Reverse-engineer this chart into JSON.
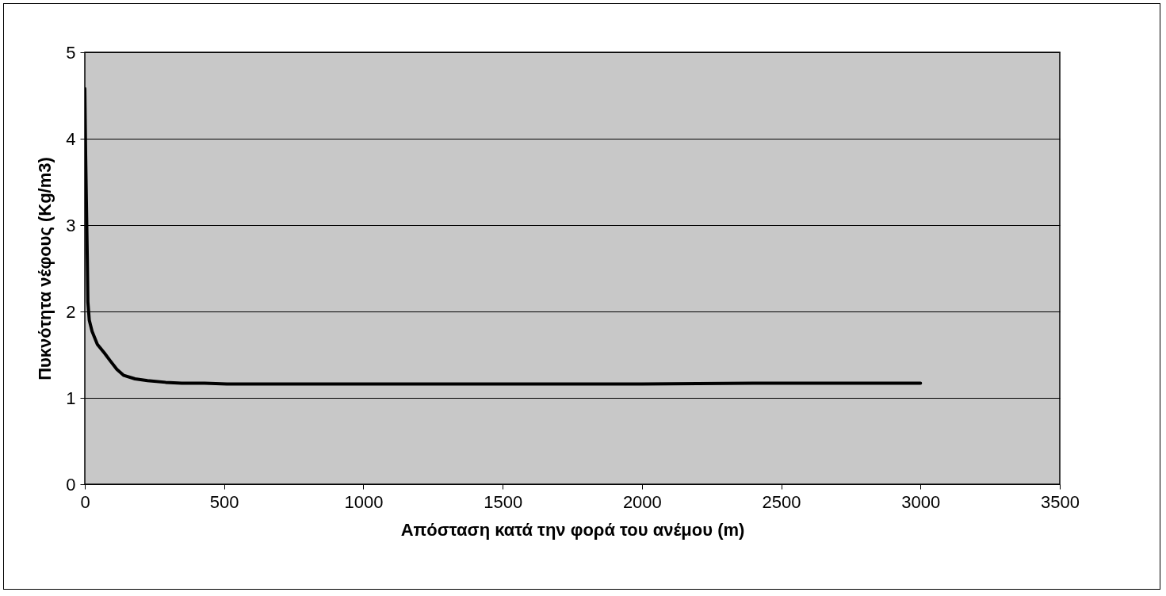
{
  "chart_data": {
    "type": "line",
    "xlabel": "Απόσταση κατά την φορά του ανέμου (m)",
    "ylabel": "Πυκνότητα νέφους (Kg/m3)",
    "x": [
      0,
      3,
      6,
      9,
      11,
      16,
      26,
      45,
      70,
      91,
      115,
      140,
      180,
      225,
      290,
      348,
      430,
      510,
      800,
      1200,
      1600,
      2000,
      2400,
      2800,
      3000
    ],
    "series": [
      {
        "color": "#000000",
        "values": [
          4.58,
          3.8,
          3.19,
          2.6,
          2.11,
          1.9,
          1.77,
          1.62,
          1.52,
          1.43,
          1.33,
          1.26,
          1.22,
          1.2,
          1.18,
          1.17,
          1.17,
          1.16,
          1.16,
          1.16,
          1.16,
          1.16,
          1.17,
          1.17,
          1.17
        ]
      }
    ],
    "xlim": [
      0,
      3500
    ],
    "xticks": [
      0,
      500,
      1000,
      1500,
      2000,
      2500,
      3000,
      3500
    ],
    "ylim": [
      0,
      5
    ],
    "yticks": [
      0,
      1,
      2,
      3,
      4,
      5
    ],
    "grid": "y",
    "line_style": "solid",
    "marker": "none"
  }
}
